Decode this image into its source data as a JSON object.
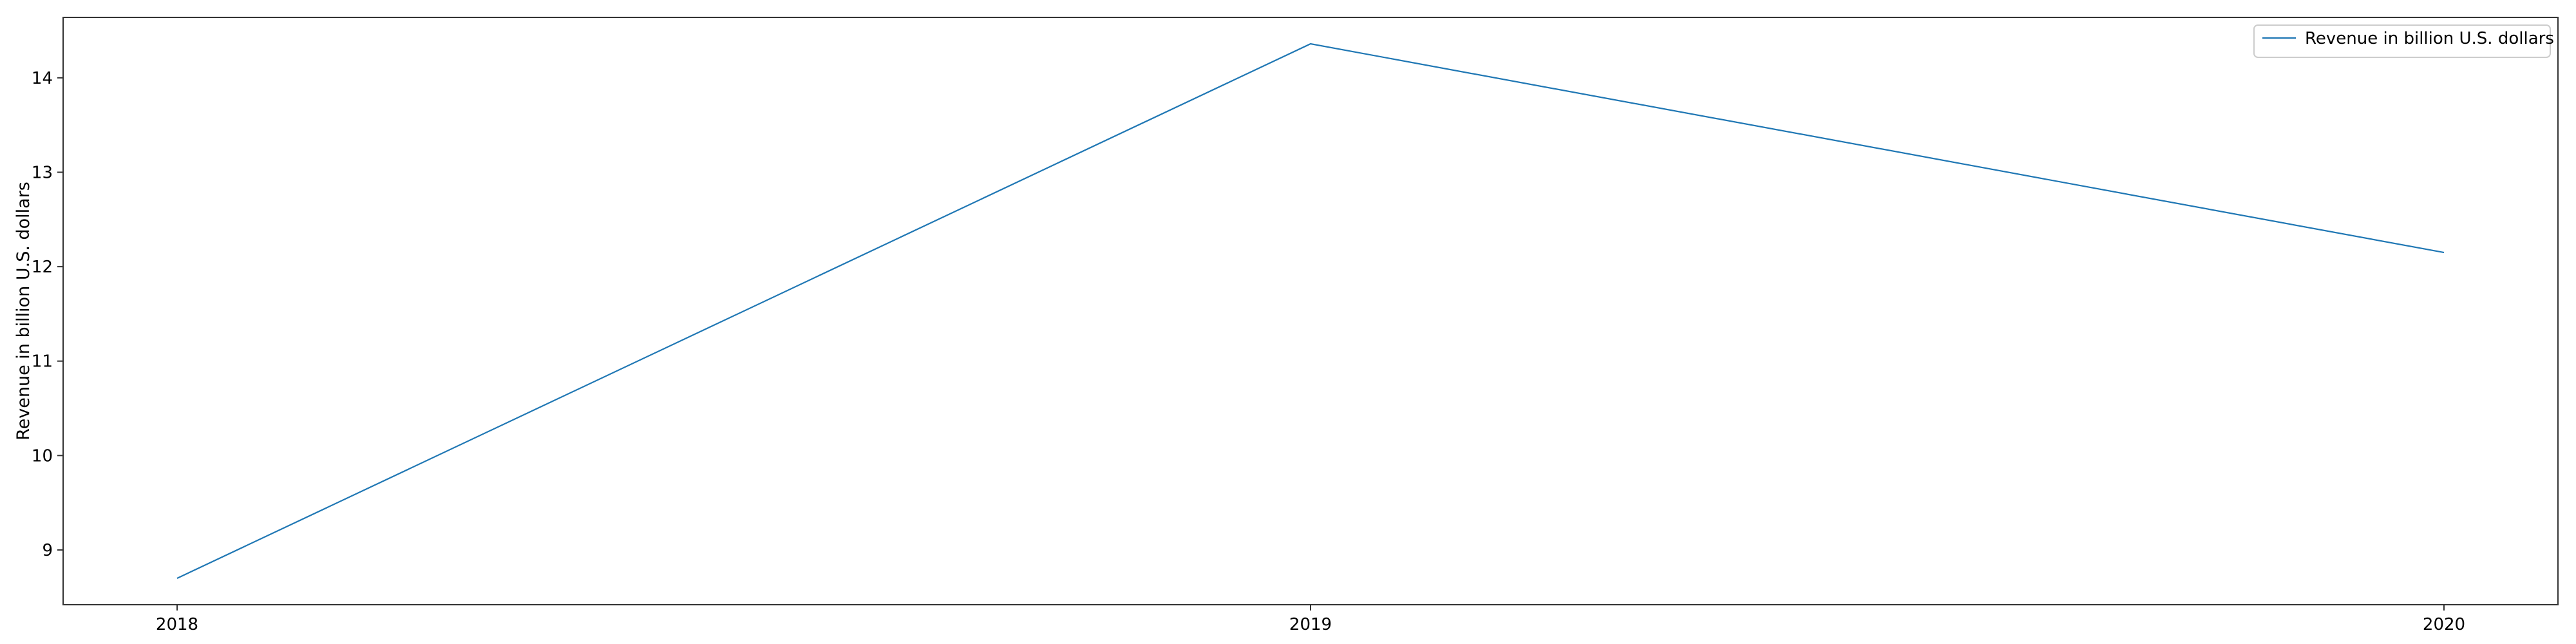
{
  "chart_data": {
    "type": "line",
    "title": "",
    "xlabel": "",
    "ylabel": "Revenue in billion U.S. dollars",
    "categories": [
      "2018",
      "2019",
      "2020"
    ],
    "series": [
      {
        "name": "Revenue in billion U.S. dollars",
        "values": [
          8.7,
          14.36,
          12.15
        ],
        "color": "#1f77b4"
      }
    ],
    "ylim": [
      8.42,
      14.64
    ],
    "yticks": [
      9,
      10,
      11,
      12,
      13,
      14
    ],
    "grid": false,
    "legend_position": "top-right"
  }
}
